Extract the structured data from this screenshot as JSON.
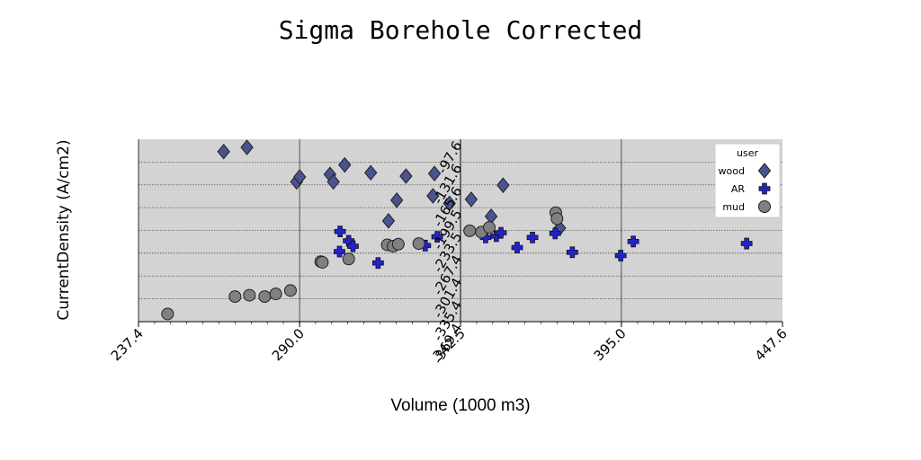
{
  "chart_data": {
    "type": "scatter",
    "title": "Sigma Borehole Corrected",
    "xlabel": "Volume (1000 m3)",
    "ylabel": "CurrentDensity (A/cm2)",
    "xlim": [
      237.4,
      447.6
    ],
    "ylim": [
      -369.4,
      -97.6
    ],
    "x_ticks": [
      "237.4",
      "290.0",
      "342.5",
      "395.0",
      "447.6"
    ],
    "y_ticks": [
      "-97.6",
      "-131.6",
      "-165.6",
      "-199.5",
      "-233.5",
      "-267.4",
      "-301.4",
      "-335.4",
      "-369.4"
    ],
    "grid": true,
    "legend": {
      "title": "user",
      "position": "top-right"
    },
    "series": [
      {
        "name": "wood",
        "marker": "diamond",
        "color": "#4a5290",
        "points": [
          [
            265.2,
            -116.0
          ],
          [
            272.8,
            -109.7
          ],
          [
            289.0,
            -161.1
          ],
          [
            290.0,
            -153.8
          ],
          [
            299.9,
            -150.0
          ],
          [
            301.0,
            -161.1
          ],
          [
            304.7,
            -135.8
          ],
          [
            313.2,
            -147.5
          ],
          [
            319.0,
            -219.2
          ],
          [
            321.7,
            -188.4
          ],
          [
            324.7,
            -152.5
          ],
          [
            334.0,
            -148.7
          ],
          [
            333.5,
            -181.9
          ],
          [
            338.9,
            -193.3
          ],
          [
            346.0,
            -187.2
          ],
          [
            352.5,
            -212.5
          ],
          [
            356.4,
            -166.1
          ],
          [
            374.9,
            -230.0
          ]
        ]
      },
      {
        "name": "AR",
        "marker": "plus",
        "color": "#2222cc",
        "points": [
          [
            303.0,
            -265.0
          ],
          [
            303.2,
            -235.0
          ],
          [
            306.0,
            -249.0
          ],
          [
            307.4,
            -257.0
          ],
          [
            315.6,
            -282.0
          ],
          [
            331.0,
            -256.0
          ],
          [
            334.9,
            -243.0
          ],
          [
            350.7,
            -244.0
          ],
          [
            354.2,
            -242.0
          ],
          [
            355.7,
            -237.0
          ],
          [
            361.0,
            -259.0
          ],
          [
            366.0,
            -244.0
          ],
          [
            373.4,
            -238.0
          ],
          [
            379.0,
            -266.0
          ],
          [
            394.8,
            -271.0
          ],
          [
            398.9,
            -250.0
          ],
          [
            435.9,
            -253.0
          ]
        ]
      },
      {
        "name": "mud",
        "marker": "circle",
        "color": "#808080",
        "points": [
          [
            246.9,
            -358.0
          ],
          [
            268.9,
            -332.0
          ],
          [
            273.6,
            -330.0
          ],
          [
            278.6,
            -332.0
          ],
          [
            282.2,
            -328.0
          ],
          [
            287.0,
            -323.0
          ],
          [
            296.9,
            -280.0
          ],
          [
            297.4,
            -281.0
          ],
          [
            306.0,
            -276.0
          ],
          [
            318.6,
            -255.0
          ],
          [
            320.5,
            -257.0
          ],
          [
            322.2,
            -254.0
          ],
          [
            328.9,
            -253.0
          ],
          [
            345.5,
            -234.0
          ],
          [
            349.3,
            -236.0
          ],
          [
            351.9,
            -229.0
          ],
          [
            373.6,
            -207.0
          ],
          [
            374.0,
            -216.0
          ]
        ]
      }
    ]
  }
}
